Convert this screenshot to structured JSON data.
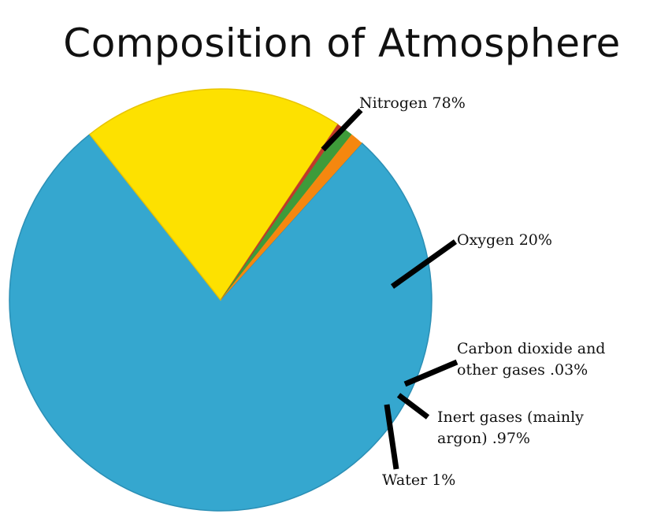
{
  "chart_data": {
    "type": "pie",
    "title": "Composition of Atmosphere",
    "slices": [
      {
        "label_lines": [
          "Nitrogen 78%"
        ],
        "value": 78,
        "color": "#35a7cf"
      },
      {
        "label_lines": [
          "Oxygen 20%"
        ],
        "value": 20,
        "color": "#fde100"
      },
      {
        "label_lines": [
          "Carbon dioxide and",
          "other gases .03%"
        ],
        "value": 0.03,
        "color": "#c0392b"
      },
      {
        "label_lines": [
          "Inert gases (mainly",
          "argon) .97%"
        ],
        "value": 0.97,
        "color": "#3e9b3a"
      },
      {
        "label_lines": [
          "Water 1%"
        ],
        "value": 1,
        "color": "#f5870f"
      }
    ],
    "legend": "none",
    "grid": false
  }
}
